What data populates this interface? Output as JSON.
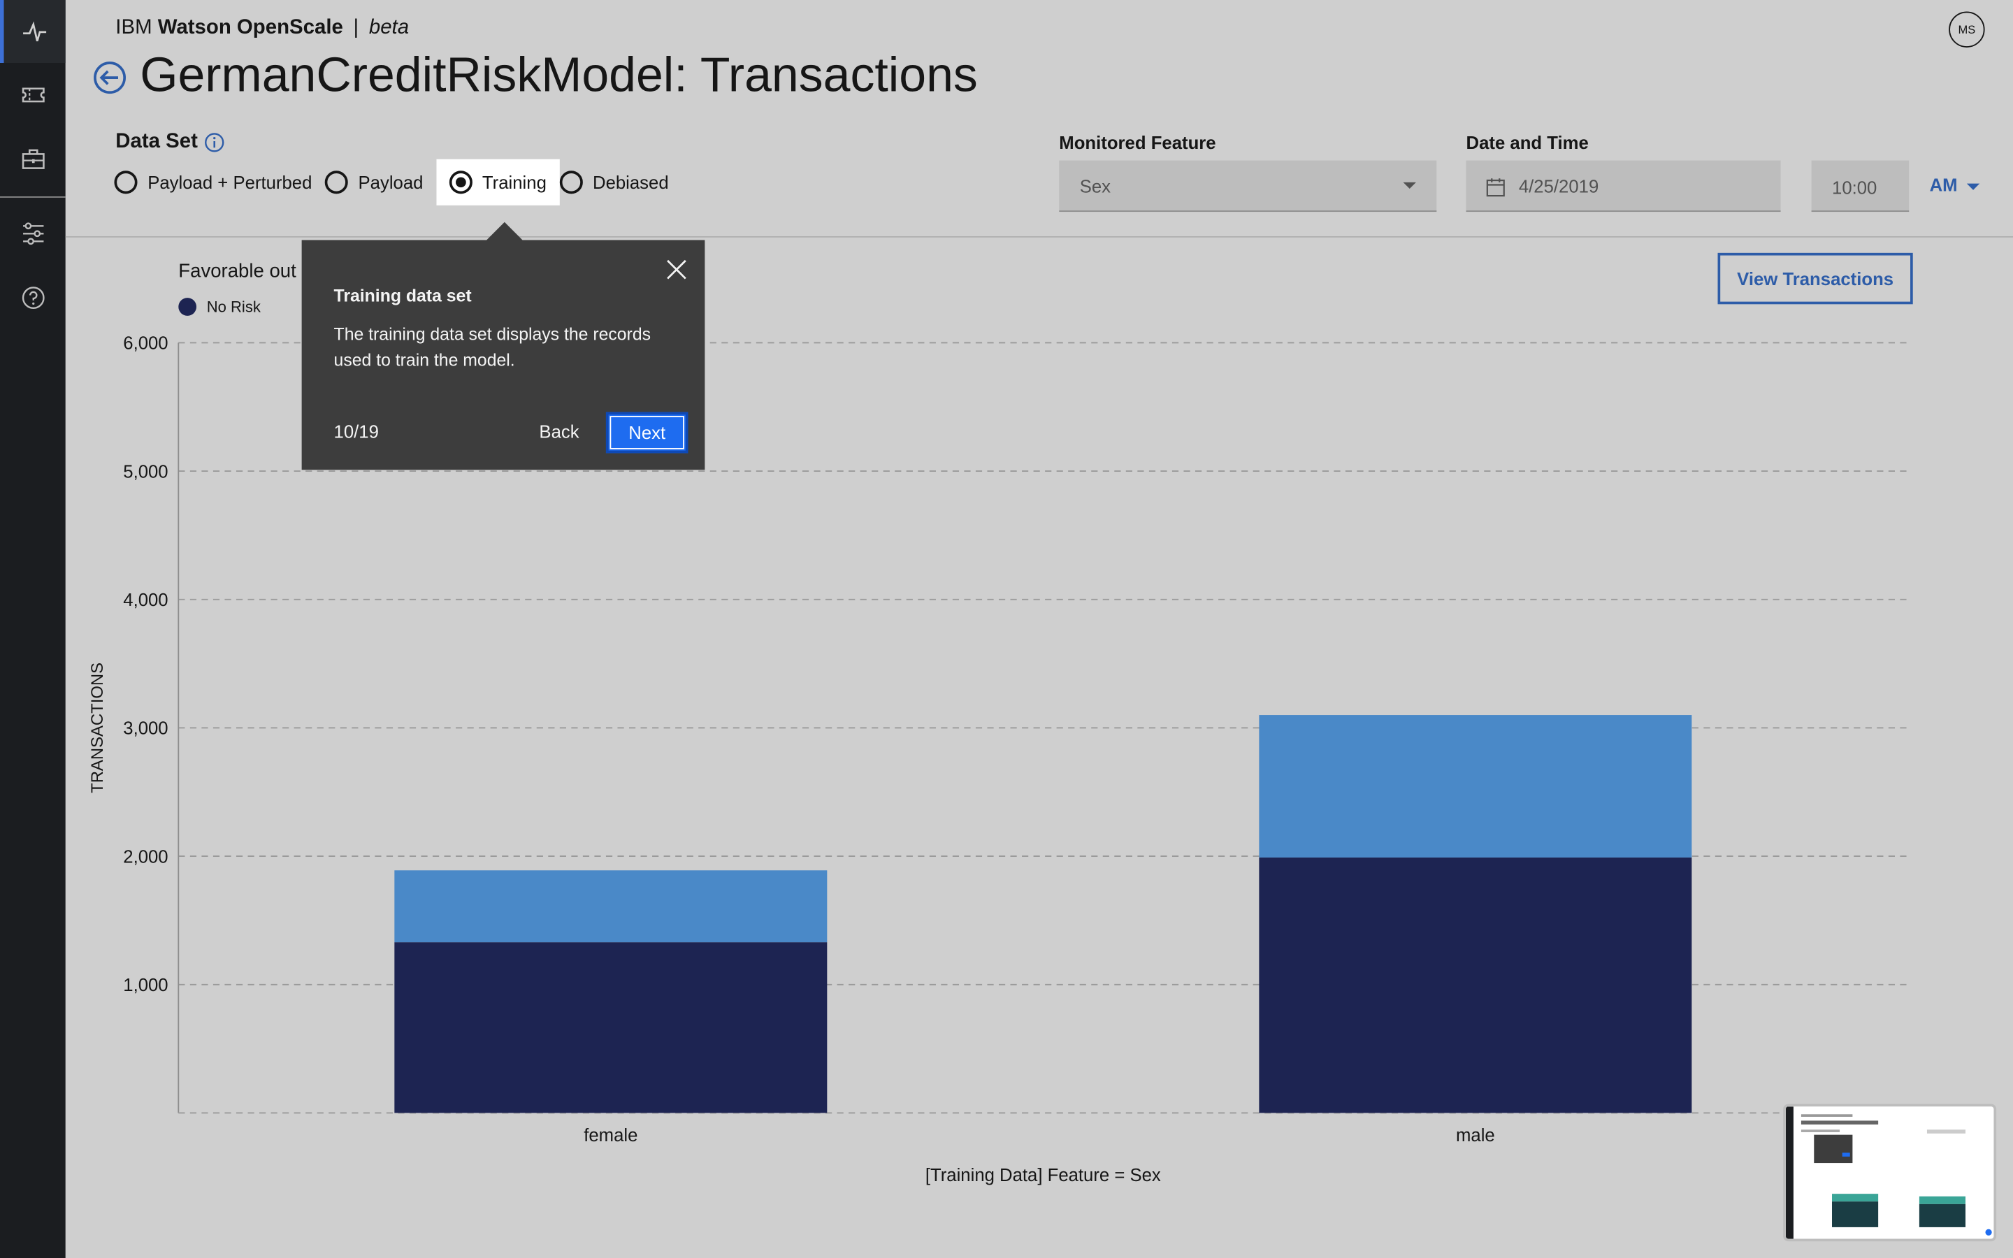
{
  "header": {
    "brand": "IBM",
    "product": "Watson OpenScale",
    "separator": "|",
    "beta": "beta",
    "avatar_initials": "MS"
  },
  "page_title": "GermanCreditRiskModel: Transactions",
  "sidebar": {
    "items": [
      {
        "icon": "activity-icon",
        "active": true
      },
      {
        "icon": "ticket-icon",
        "active": false
      },
      {
        "icon": "briefcase-icon",
        "active": false
      },
      {
        "icon": "settings-sliders-icon",
        "active": false
      },
      {
        "icon": "help-icon",
        "active": false
      }
    ]
  },
  "data_set": {
    "label": "Data Set",
    "options": [
      {
        "label": "Payload + Perturbed",
        "checked": false
      },
      {
        "label": "Payload",
        "checked": false
      },
      {
        "label": "Training",
        "checked": true
      },
      {
        "label": "Debiased",
        "checked": false
      }
    ]
  },
  "monitored_feature": {
    "label": "Monitored Feature",
    "value": "Sex"
  },
  "date_time": {
    "label": "Date and Time",
    "date": "4/25/2019",
    "time": "10:00",
    "ampm": "AM"
  },
  "chart_section": {
    "title": "Favorable out",
    "view_button": "View Transactions"
  },
  "tooltip": {
    "title": "Training data set",
    "body": "The training data set displays the records used to train the model.",
    "step": "10/19",
    "back": "Back",
    "next": "Next"
  },
  "colors": {
    "no_risk": "#1d2452",
    "risk": "#4a89c8",
    "accent": "#2d5ca8",
    "sidebar": "#1b1d20"
  },
  "chart_data": {
    "type": "bar",
    "stacked": true,
    "categories": [
      "female",
      "male"
    ],
    "series": [
      {
        "name": "No Risk",
        "values": [
          1330,
          1990
        ],
        "color": "#1d2452"
      },
      {
        "name": "",
        "values": [
          560,
          1110
        ],
        "color": "#4a89c8"
      }
    ],
    "xlabel": "[Training Data] Feature = Sex",
    "ylabel": "TRANSACTIONS",
    "ylim": [
      0,
      6000
    ],
    "yticks": [
      1000,
      2000,
      3000,
      4000,
      5000,
      6000
    ],
    "ytick_labels": [
      "1,000",
      "2,000",
      "3,000",
      "4,000",
      "5,000",
      "6,000"
    ],
    "grid": true,
    "legend": "top-left"
  }
}
